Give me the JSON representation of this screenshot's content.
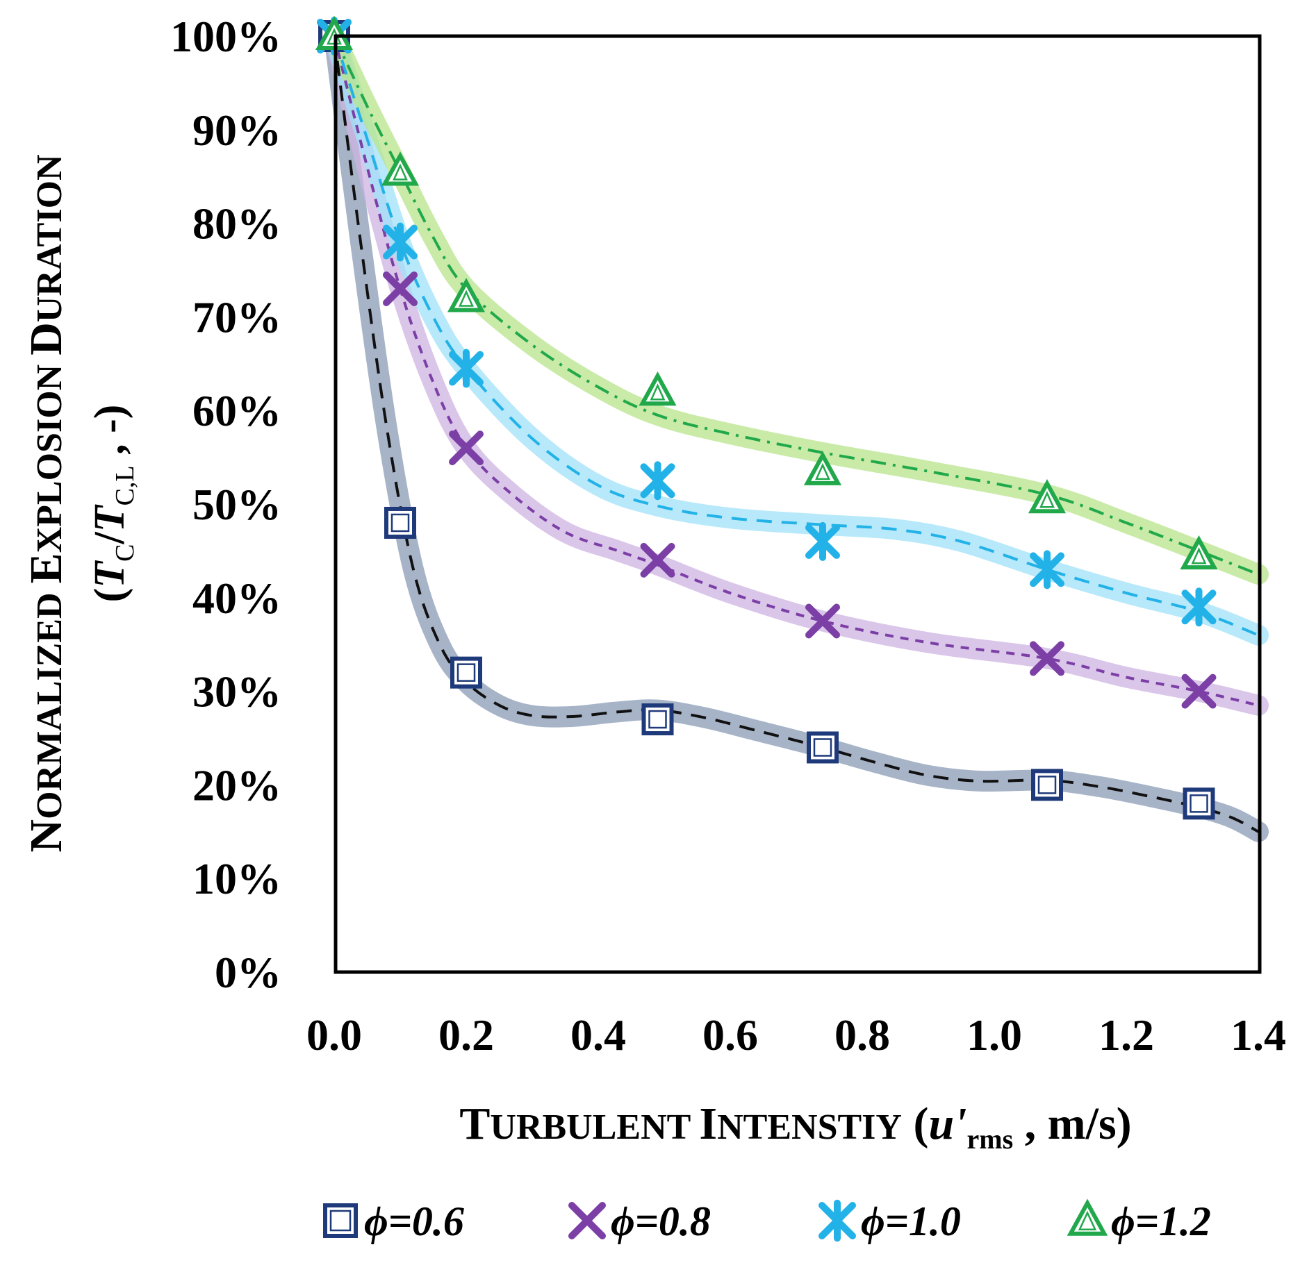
{
  "chart_data": {
    "type": "line",
    "title": "",
    "ylabel": {
      "line1_parts": [
        {
          "text": "N",
          "big": true
        },
        {
          "text": "ORMALIZED",
          "big": false
        },
        {
          "text": " ",
          "big": false
        },
        {
          "text": "E",
          "big": true
        },
        {
          "text": "XPLOSION",
          "big": false
        },
        {
          "text": " ",
          "big": false
        },
        {
          "text": "D",
          "big": true
        },
        {
          "text": "URATION",
          "big": false
        }
      ],
      "line2": {
        "open": "(",
        "tc": "T",
        "tc_sub": "C",
        "slash": "/",
        "tcl": "T",
        "tcl_sub": "C,L",
        "tail": " , -)"
      }
    },
    "xlabel": {
      "parts": [
        {
          "text": "T",
          "big": true
        },
        {
          "text": "URBULENT",
          "big": false
        },
        {
          "text": " ",
          "big": false
        },
        {
          "text": "I",
          "big": true
        },
        {
          "text": "NTENSTIY",
          "big": false
        }
      ],
      "open": " (",
      "var": "u'",
      "sub": "rms",
      "tail": " , m/s)"
    },
    "xlim": [
      0,
      1.4
    ],
    "ylim": [
      0,
      100
    ],
    "x_ticks": [
      0.0,
      0.2,
      0.4,
      0.6,
      0.8,
      1.0,
      1.2,
      1.4
    ],
    "x_tick_labels": [
      "0.0",
      "0.2",
      "0.4",
      "0.6",
      "0.8",
      "1.0",
      "1.2",
      "1.4"
    ],
    "y_ticks": [
      0,
      10,
      20,
      30,
      40,
      50,
      60,
      70,
      80,
      90,
      100
    ],
    "y_tick_labels": [
      "0%",
      "10%",
      "20%",
      "30%",
      "40%",
      "50%",
      "60%",
      "70%",
      "80%",
      "90%",
      "100%"
    ],
    "grid": false,
    "legend_position": "bottom",
    "series": [
      {
        "name": "ϕ=0.6",
        "marker": "square",
        "color": "#1f3a7a",
        "halo_color": "#8a9bb5",
        "line_style": "dashed",
        "line_color": "#111111",
        "x": [
          0.0,
          0.1,
          0.2,
          0.49,
          0.74,
          1.08,
          1.31
        ],
        "y": [
          100,
          48,
          32,
          27,
          24,
          20,
          18
        ],
        "trend_x": [
          0.0,
          0.04,
          0.08,
          0.12,
          0.16,
          0.2,
          0.25,
          0.3,
          0.36,
          0.43,
          0.49,
          0.56,
          0.64,
          0.74,
          0.82,
          0.9,
          0.98,
          1.08,
          1.16,
          1.24,
          1.31,
          1.36,
          1.4
        ],
        "trend_y": [
          100,
          78,
          58,
          43,
          35,
          31,
          28.5,
          27.4,
          27.3,
          27.8,
          28,
          27.2,
          25.8,
          24,
          22.4,
          21,
          20.4,
          20.5,
          19.8,
          18.7,
          17.6,
          16.5,
          15
        ]
      },
      {
        "name": "ϕ=0.8",
        "marker": "x",
        "color": "#7b3fa6",
        "halo_color": "#cdb3e2",
        "line_style": "dotted-dash",
        "line_color": "#7b3fa6",
        "x": [
          0.0,
          0.1,
          0.2,
          0.49,
          0.74,
          1.08,
          1.31
        ],
        "y": [
          100,
          73,
          56,
          44,
          37.5,
          33.5,
          30
        ],
        "trend_x": [
          0.0,
          0.05,
          0.1,
          0.15,
          0.2,
          0.27,
          0.35,
          0.43,
          0.49,
          0.6,
          0.74,
          0.9,
          1.08,
          1.2,
          1.31,
          1.4
        ],
        "trend_y": [
          100,
          86,
          73,
          63,
          56,
          51,
          47,
          45,
          43.5,
          40.5,
          37.5,
          35.2,
          33.5,
          31.5,
          30,
          28.5
        ]
      },
      {
        "name": "ϕ=1.0",
        "marker": "asterisk",
        "color": "#22b2e8",
        "halo_color": "#9fe1f8",
        "line_style": "dashed",
        "line_color": "#22b2e8",
        "x": [
          0.0,
          0.1,
          0.2,
          0.49,
          0.74,
          1.08,
          1.31
        ],
        "y": [
          100,
          78,
          64.5,
          52.5,
          46,
          43,
          39
        ],
        "trend_x": [
          0.0,
          0.05,
          0.1,
          0.15,
          0.2,
          0.3,
          0.4,
          0.49,
          0.6,
          0.74,
          0.85,
          0.95,
          1.08,
          1.2,
          1.31,
          1.4
        ],
        "trend_y": [
          100,
          89,
          78,
          70,
          64.5,
          57,
          52,
          49.8,
          48.5,
          47.8,
          47.3,
          46,
          43,
          40.5,
          38.5,
          36
        ]
      },
      {
        "name": "ϕ=1.2",
        "marker": "triangle",
        "color": "#21a84b",
        "halo_color": "#b7e48a",
        "line_style": "dash-dot",
        "line_color": "#21a84b",
        "x": [
          0.0,
          0.1,
          0.2,
          0.49,
          0.74,
          1.08,
          1.31
        ],
        "y": [
          100,
          85.5,
          72,
          62,
          53.5,
          50.5,
          44.5
        ],
        "trend_x": [
          0.0,
          0.05,
          0.1,
          0.15,
          0.2,
          0.3,
          0.4,
          0.49,
          0.6,
          0.74,
          0.9,
          1.08,
          1.2,
          1.31,
          1.4
        ],
        "trend_y": [
          100,
          92.5,
          85.5,
          78.5,
          73,
          67,
          62.5,
          59.5,
          57.5,
          55.5,
          53.5,
          51,
          48,
          45,
          42.5
        ]
      }
    ]
  }
}
